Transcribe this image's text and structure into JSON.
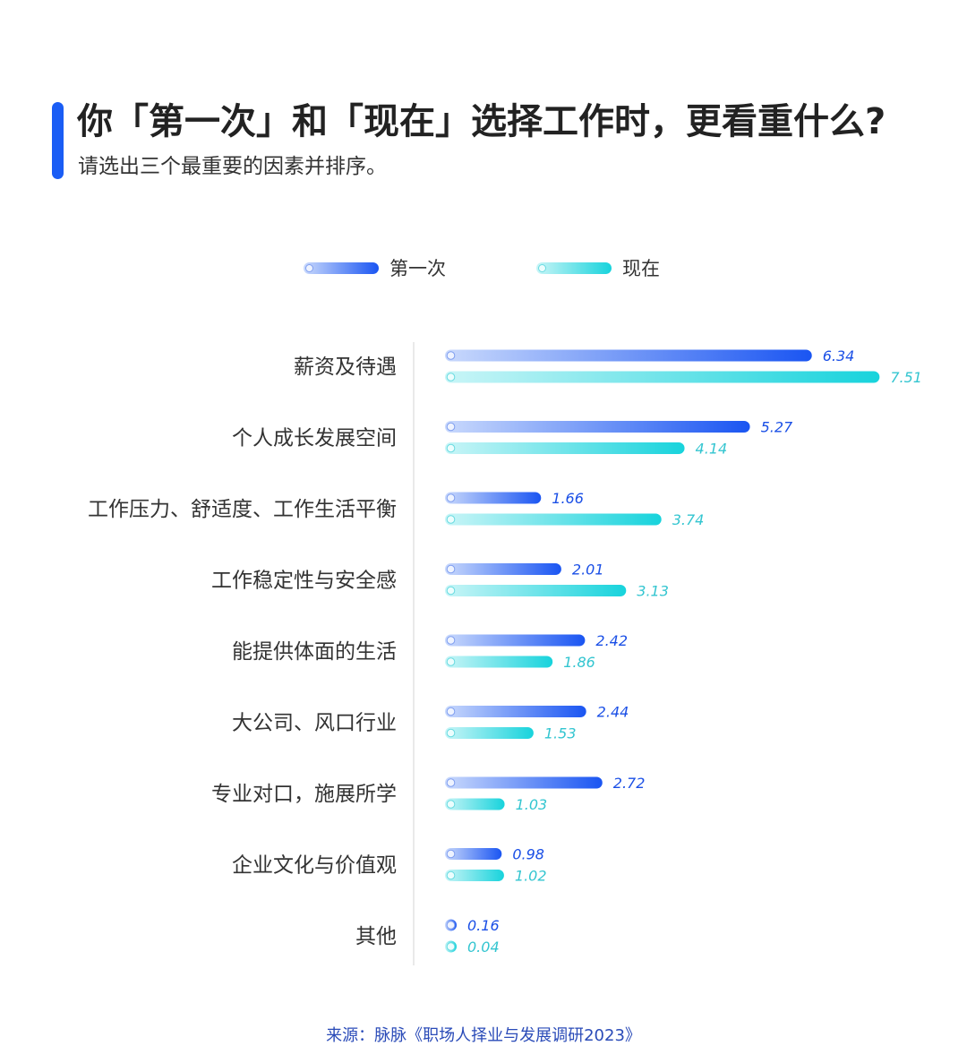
{
  "header": {
    "title": "你「第一次」和「现在」选择工作时，更看重什么?",
    "subtitle": "请选出三个最重要的因素并排序。"
  },
  "colors": {
    "accent": "#1a5df5",
    "first_start": "#c9d9fc",
    "first_end": "#1a55f2",
    "now_start": "#c9f5f7",
    "now_end": "#17d3dc",
    "first_label": "#1a4fe6",
    "now_label": "#33c5d0"
  },
  "legend": {
    "first": "第一次",
    "now": "现在"
  },
  "chart_data": {
    "type": "bar",
    "orientation": "horizontal",
    "categories": [
      "薪资及待遇",
      "个人成长发展空间",
      "工作压力、舒适度、工作生活平衡",
      "工作稳定性与安全感",
      "能提供体面的生活",
      "大公司、风口行业",
      "专业对口，施展所学",
      "企业文化与价值观",
      "其他"
    ],
    "series": [
      {
        "name": "第一次",
        "values": [
          6.34,
          5.27,
          1.66,
          2.01,
          2.42,
          2.44,
          2.72,
          0.98,
          0.16
        ]
      },
      {
        "name": "现在",
        "values": [
          7.51,
          4.14,
          3.74,
          3.13,
          1.86,
          1.53,
          1.03,
          1.02,
          0.04
        ]
      }
    ],
    "value_labels": [
      [
        "6.34",
        "5.27",
        "1.66",
        "2.01",
        "2.42",
        "2.44",
        "2.72",
        "0.98",
        "0.16"
      ],
      [
        "7.51",
        "4.14",
        "3.74",
        "3.13",
        "1.86",
        "1.53",
        "1.03",
        "1.02",
        "0.04"
      ]
    ],
    "xlim": [
      0,
      8
    ],
    "legend_position": "top-center",
    "grid": false
  },
  "source": "来源：脉脉《职场人择业与发展调研2023》"
}
